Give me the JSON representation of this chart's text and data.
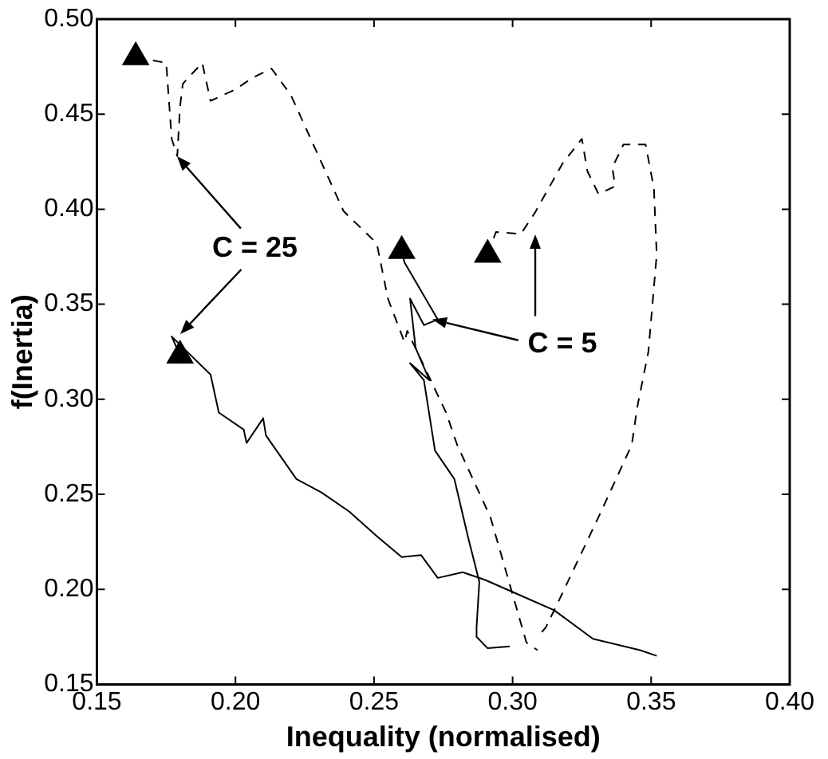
{
  "chart_data": {
    "type": "line",
    "xlabel": "Inequality (normalised)",
    "ylabel": "f(Inertia)",
    "xlim": [
      0.15,
      0.4
    ],
    "xticks": [
      {
        "value": 0.15,
        "label": "0.15"
      },
      {
        "value": 0.2,
        "label": "0.20"
      },
      {
        "value": 0.25,
        "label": "0.25"
      },
      {
        "value": 0.3,
        "label": "0.30"
      },
      {
        "value": 0.35,
        "label": "0.35"
      },
      {
        "value": 0.4,
        "label": "0.40"
      }
    ],
    "ylim": [
      0.15,
      0.5
    ],
    "yticks": [
      {
        "value": 0.15,
        "label": "0.15"
      },
      {
        "value": 0.2,
        "label": "0.20"
      },
      {
        "value": 0.25,
        "label": "0.25"
      },
      {
        "value": 0.3,
        "label": "0.30"
      },
      {
        "value": 0.35,
        "label": "0.35"
      },
      {
        "value": 0.4,
        "label": "0.40"
      },
      {
        "value": 0.45,
        "label": "0.45"
      },
      {
        "value": 0.5,
        "label": "0.50"
      }
    ],
    "grid": false,
    "legend": false,
    "annotations": [
      "C = 25",
      "C = 5"
    ],
    "series": [
      {
        "color": "#000000",
        "line_style": "solid",
        "x": [
          0.18,
          0.177,
          0.191,
          0.194,
          0.203,
          0.204,
          0.21,
          0.211,
          0.222,
          0.231,
          0.241,
          0.251,
          0.26,
          0.267,
          0.273,
          0.282,
          0.29,
          0.301,
          0.315,
          0.329,
          0.346,
          0.352
        ],
        "values": [
          0.323,
          0.333,
          0.313,
          0.293,
          0.284,
          0.277,
          0.29,
          0.281,
          0.258,
          0.251,
          0.241,
          0.228,
          0.217,
          0.218,
          0.206,
          0.209,
          0.205,
          0.198,
          0.189,
          0.174,
          0.168,
          0.165
        ]
      },
      {
        "color": "#000000",
        "line_style": "solid",
        "x": [
          0.26,
          0.261,
          0.273,
          0.268,
          0.263,
          0.265,
          0.27,
          0.263,
          0.268,
          0.272,
          0.279,
          0.284,
          0.288,
          0.287,
          0.287,
          0.291,
          0.299
        ],
        "values": [
          0.378,
          0.372,
          0.342,
          0.339,
          0.353,
          0.327,
          0.31,
          0.319,
          0.31,
          0.273,
          0.258,
          0.227,
          0.204,
          0.18,
          0.175,
          0.169,
          0.17
        ]
      },
      {
        "color": "#000000",
        "line_style": "dashed",
        "x": [
          0.164,
          0.175,
          0.176,
          0.177,
          0.179,
          0.18,
          0.181,
          0.188,
          0.191,
          0.2,
          0.206,
          0.213,
          0.22,
          0.239,
          0.251,
          0.255,
          0.261,
          0.262,
          0.276,
          0.28,
          0.292,
          0.305,
          0.309
        ],
        "values": [
          0.48,
          0.477,
          0.457,
          0.437,
          0.428,
          0.454,
          0.466,
          0.477,
          0.457,
          0.463,
          0.469,
          0.474,
          0.46,
          0.399,
          0.382,
          0.353,
          0.33,
          0.336,
          0.293,
          0.276,
          0.238,
          0.172,
          0.168
        ]
      },
      {
        "color": "#000000",
        "line_style": "dashed",
        "x": [
          0.291,
          0.294,
          0.303,
          0.308,
          0.318,
          0.325,
          0.327,
          0.331,
          0.337,
          0.336,
          0.34,
          0.348,
          0.351,
          0.352,
          0.349,
          0.345,
          0.343,
          0.331,
          0.317,
          0.312,
          0.309
        ],
        "values": [
          0.376,
          0.388,
          0.387,
          0.398,
          0.424,
          0.437,
          0.42,
          0.408,
          0.412,
          0.422,
          0.434,
          0.434,
          0.411,
          0.376,
          0.325,
          0.296,
          0.276,
          0.238,
          0.195,
          0.18,
          0.175
        ]
      },
      {
        "type": "scatter",
        "marker": "triangle",
        "color": "#000000",
        "x": [
          0.18,
          0.26,
          0.164,
          0.291
        ],
        "values": [
          0.323,
          0.378,
          0.48,
          0.376
        ]
      }
    ]
  }
}
